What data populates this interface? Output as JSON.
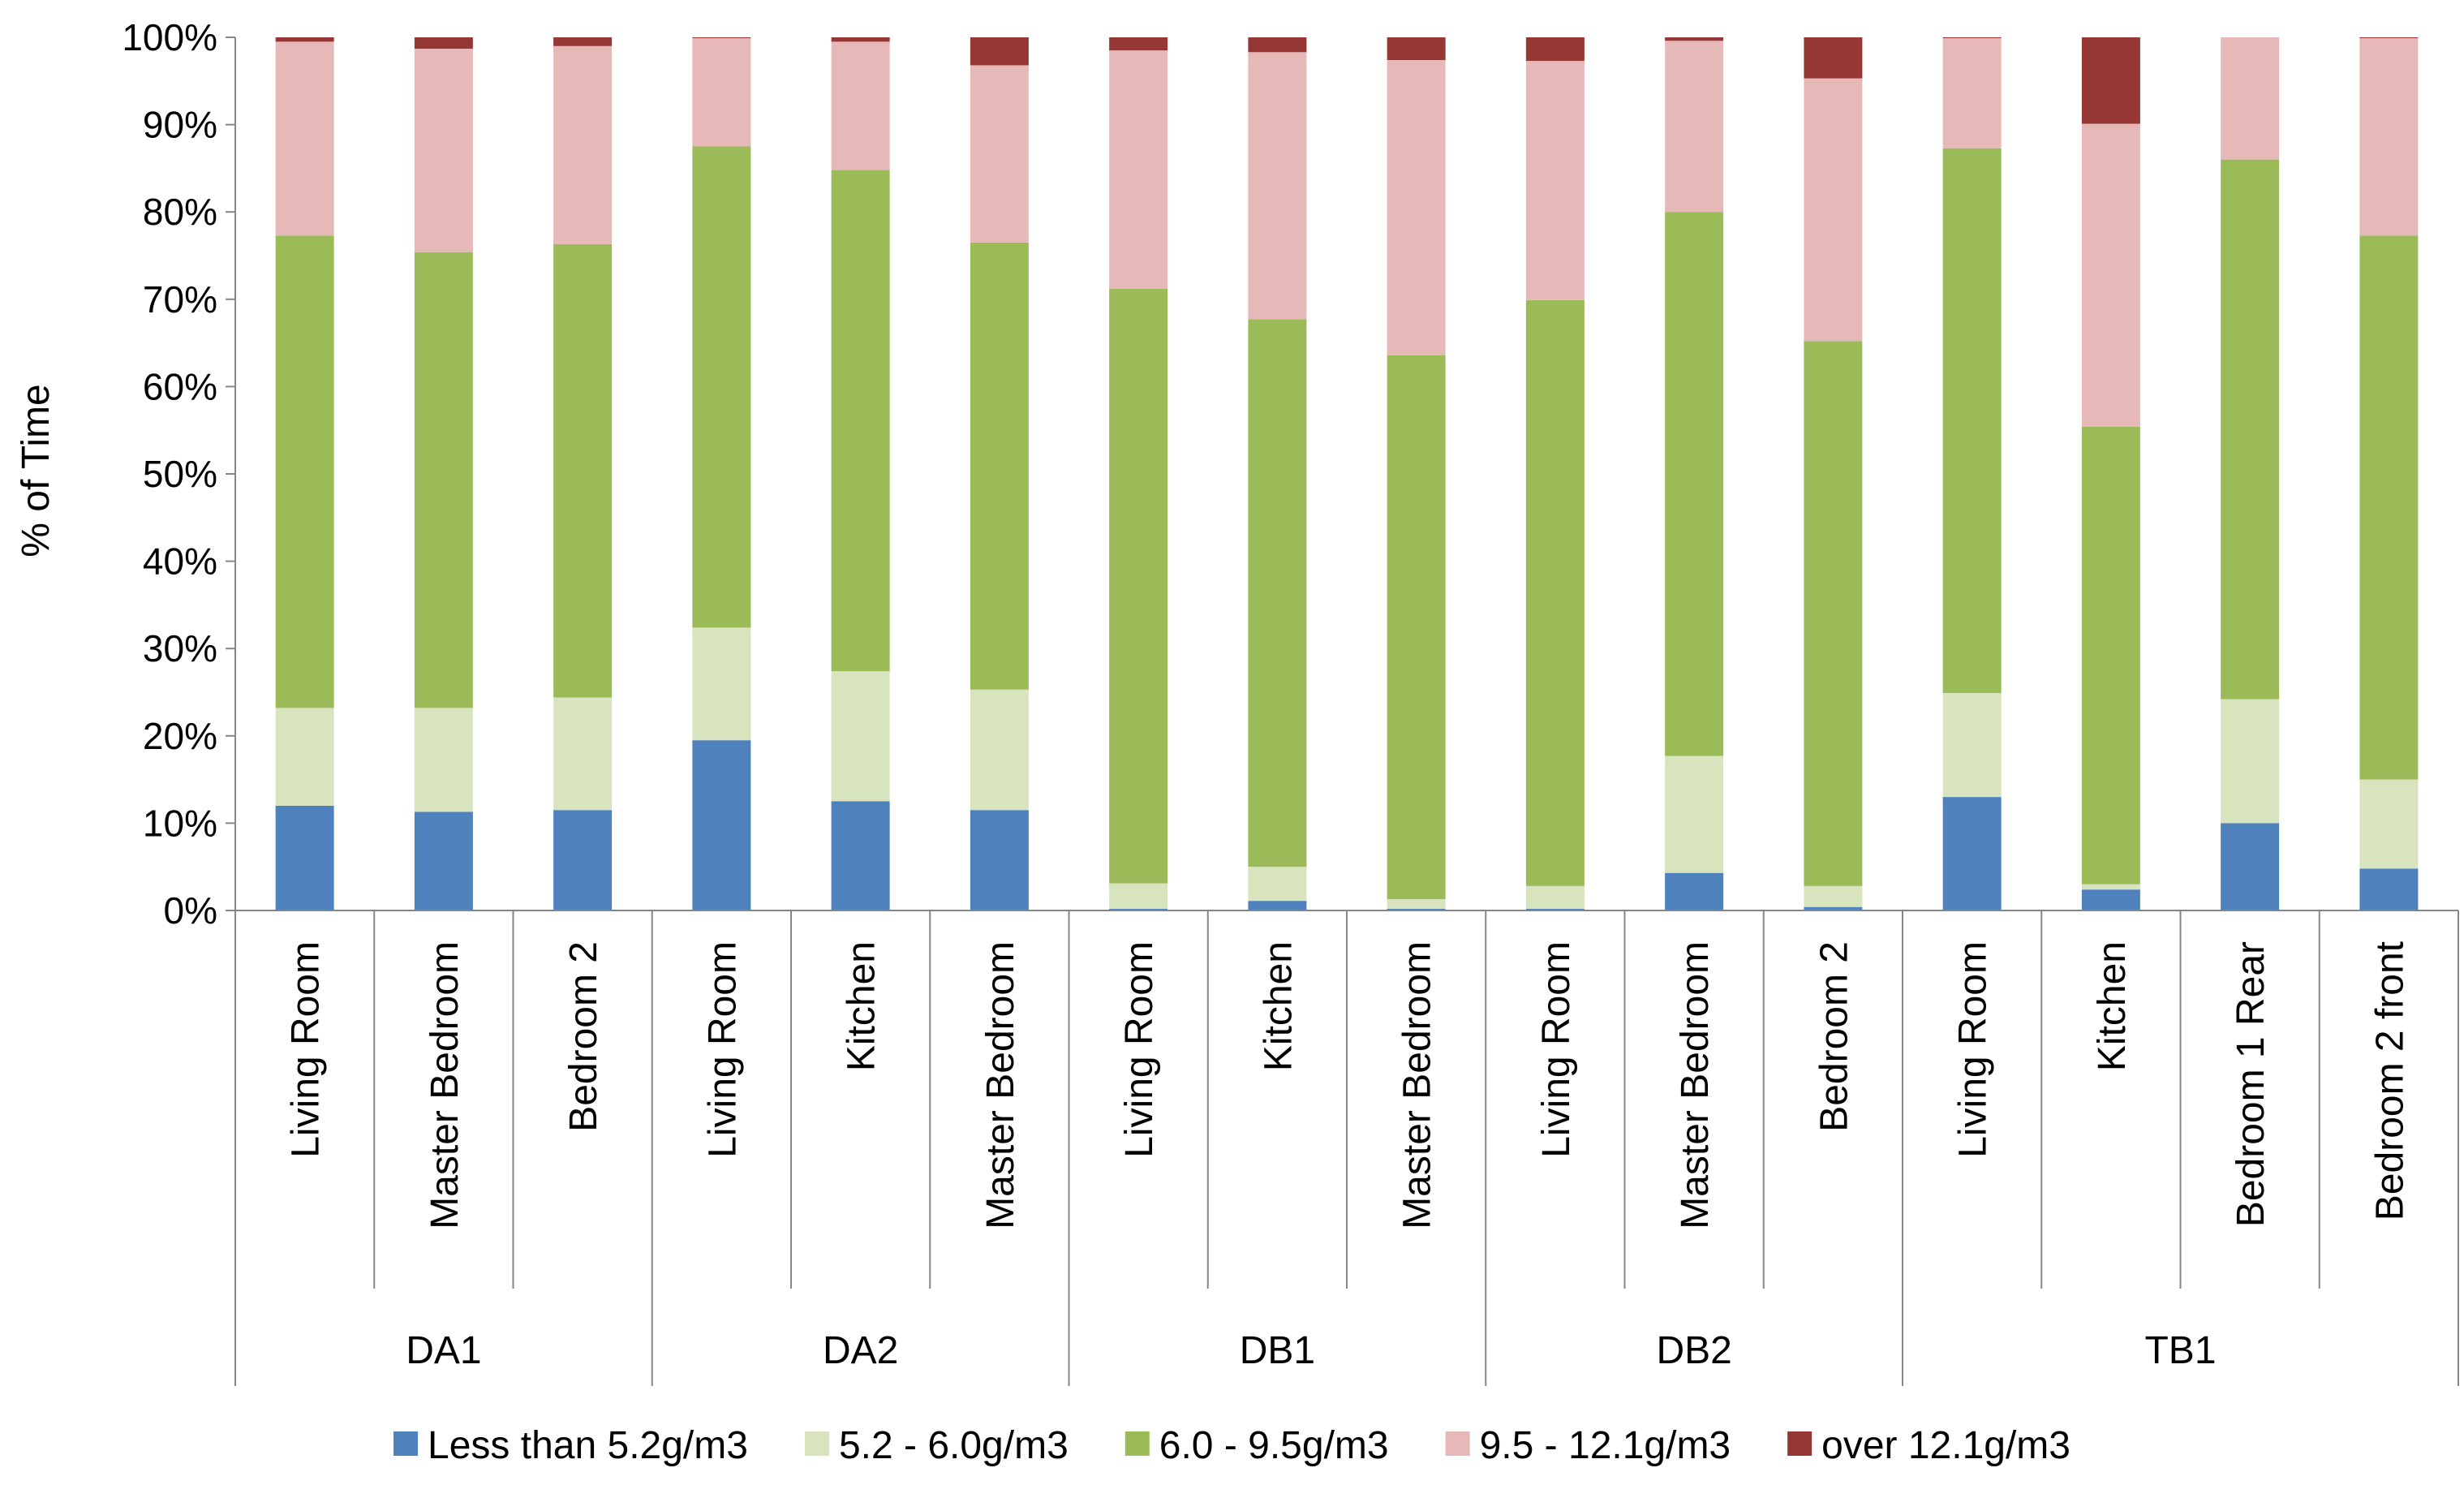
{
  "chart_data": {
    "type": "bar",
    "stacked": true,
    "ylabel": "% of Time",
    "ylim": [
      0,
      100
    ],
    "yticks": [
      "0%",
      "10%",
      "20%",
      "30%",
      "40%",
      "50%",
      "60%",
      "70%",
      "80%",
      "90%",
      "100%"
    ],
    "grid": false,
    "legend_position": "bottom",
    "groups": [
      {
        "label": "DA1",
        "size": 3
      },
      {
        "label": "DA2",
        "size": 3
      },
      {
        "label": "DB1",
        "size": 3
      },
      {
        "label": "DB2",
        "size": 3
      },
      {
        "label": "TB1",
        "size": 4
      }
    ],
    "categories": [
      "Living Room",
      "Master Bedroom",
      "Bedroom 2",
      "Living Room",
      "Kitchen",
      "Master Bedroom",
      "Living Room",
      "Kitchen",
      "Master Bedroom",
      "Living Room",
      "Master Bedroom",
      "Bedroom 2",
      "Living Room",
      "Kitchen",
      "Bedroom 1 Rear",
      "Bedroom 2 front"
    ],
    "series": [
      {
        "name": "Less than 5.2g/m3",
        "color": "#4f81bd",
        "values": [
          12,
          11.3,
          11.5,
          19.5,
          12.5,
          11.5,
          0.2,
          1.1,
          0.2,
          0.2,
          4.3,
          0.4,
          13,
          2.4,
          10,
          4.8
        ]
      },
      {
        "name": "5.2 - 6.0g/m3",
        "color": "#d7e4bd",
        "values": [
          11.2,
          11.9,
          12.9,
          12.9,
          14.9,
          13.8,
          2.9,
          3.9,
          1.1,
          2.6,
          13.4,
          2.4,
          11.9,
          0.6,
          14.2,
          10.2
        ]
      },
      {
        "name": "6.0 - 9.5g/m3",
        "color": "#9bbb59",
        "values": [
          54.1,
          52.2,
          51.9,
          55.1,
          57.4,
          51.2,
          68.1,
          62.7,
          62.3,
          67.1,
          62.3,
          62.4,
          62.4,
          52.4,
          61.8,
          62.3
        ]
      },
      {
        "name": "9.5 - 12.1g/m3",
        "color": "#e6b9b8",
        "values": [
          22.2,
          23.3,
          22.7,
          12.4,
          14.7,
          20.3,
          27.3,
          30.6,
          33.8,
          27.4,
          19.6,
          30.1,
          12.6,
          34.7,
          14,
          22.6
        ]
      },
      {
        "name": "over 12.1g/m3",
        "color": "#953735",
        "values": [
          0.5,
          1.3,
          1,
          0.1,
          0.5,
          3.2,
          1.5,
          1.7,
          2.6,
          2.7,
          0.4,
          4.7,
          0.1,
          9.9,
          0,
          0.1
        ]
      }
    ]
  }
}
